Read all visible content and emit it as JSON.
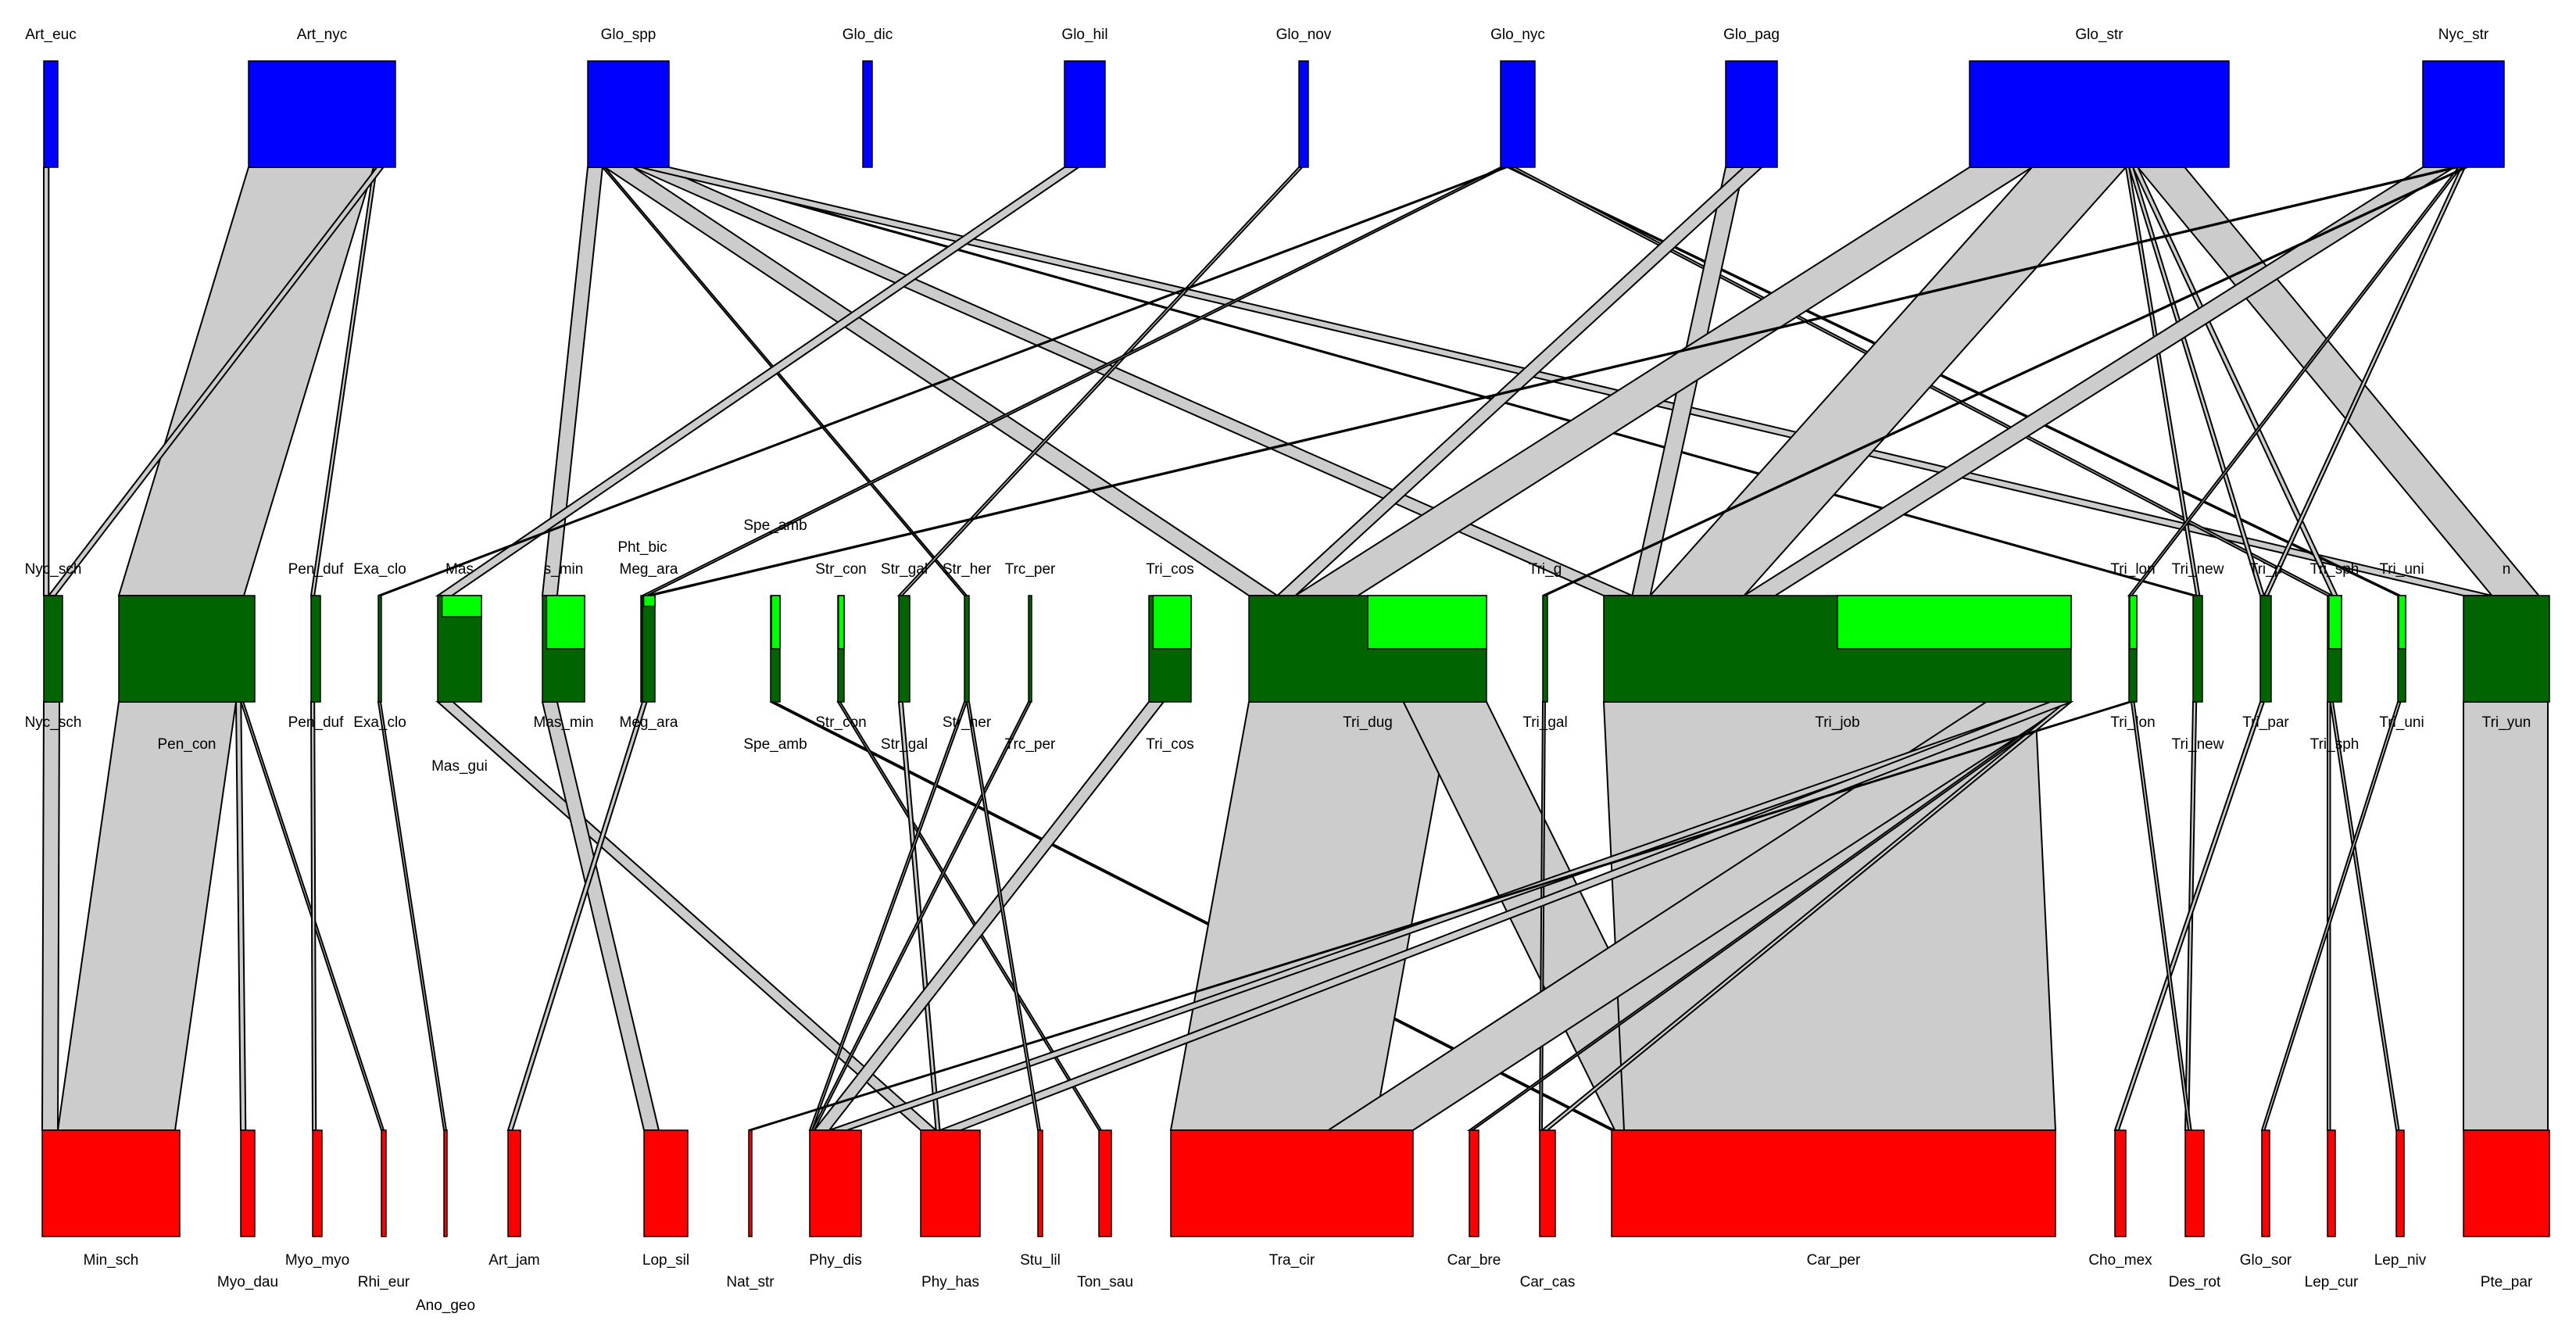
{
  "colors": {
    "top": "#0000ff",
    "middle": "#006400",
    "middle_highlight": "#00ff00",
    "bottom": "#ff0000",
    "link": "#cccccc"
  },
  "top_level": [
    {
      "id": "Art_euc",
      "label": "Art_euc"
    },
    {
      "id": "Art_nyc",
      "label": "Art_nyc"
    },
    {
      "id": "Glo_spp",
      "label": "Glo_spp"
    },
    {
      "id": "Glo_dic",
      "label": "Glo_dic"
    },
    {
      "id": "Glo_hil",
      "label": "Glo_hil"
    },
    {
      "id": "Glo_nov",
      "label": "Glo_nov"
    },
    {
      "id": "Glo_nyc",
      "label": "Glo_nyc"
    },
    {
      "id": "Glo_pag",
      "label": "Glo_pag"
    },
    {
      "id": "Glo_str",
      "label": "Glo_str"
    },
    {
      "id": "Nyc_str",
      "label": "Nyc_str"
    }
  ],
  "middle_level": [
    {
      "id": "Nyc_sch",
      "label": "Nyc_sch",
      "up": "Nyc_sch",
      "highlight": 0
    },
    {
      "id": "Pen_con",
      "label": "Pen_con",
      "up": "",
      "highlight": 0
    },
    {
      "id": "Pen_duf",
      "label": "Pen_duf",
      "up": "Pen_duf",
      "highlight": 0
    },
    {
      "id": "Exa_clo",
      "label": "Exa_clo",
      "up": "Exa_clo",
      "highlight": 0
    },
    {
      "id": "Mas_gui",
      "label": "Mas_gui",
      "up": "Mas",
      "highlight": 0.2
    },
    {
      "id": "Mas_min",
      "label": "Mas_min",
      "up": "s_min",
      "highlight": 0.5
    },
    {
      "id": "Pht_bic",
      "label": "",
      "up": "Pht_bic",
      "highlight": 0
    },
    {
      "id": "Meg_ara",
      "label": "Meg_ara",
      "up": "Meg_ara",
      "highlight": 0.1
    },
    {
      "id": "Spe_amb",
      "label": "Spe_amb",
      "up": "Spe_amb",
      "highlight": 0.5
    },
    {
      "id": "Str_con",
      "label": "Str_con",
      "up": "Str_con",
      "highlight": 0.5
    },
    {
      "id": "Str_gal",
      "label": "Str_gal",
      "up": "Str_gal",
      "highlight": 0
    },
    {
      "id": "Str_her",
      "label": "Str_her",
      "up": "Str_her",
      "highlight": 0
    },
    {
      "id": "Trc_per",
      "label": "Trc_per",
      "up": "Trc_per",
      "highlight": 0
    },
    {
      "id": "Tri_cos",
      "label": "Tri_cos",
      "up": "Tri_cos",
      "highlight": 0.5
    },
    {
      "id": "Tri_dug",
      "label": "Tri_dug",
      "up": "",
      "highlight": 0.5
    },
    {
      "id": "Tri_gal",
      "label": "Tri_gal",
      "up": "Tri_g",
      "highlight": 0
    },
    {
      "id": "Tri_job",
      "label": "Tri_job",
      "up": "",
      "highlight": 0.5
    },
    {
      "id": "Tri_lon",
      "label": "Tri_lon",
      "up": "Tri_lon",
      "highlight": 0.5
    },
    {
      "id": "Tri_new",
      "label": "Tri_new",
      "up": "Tri_new",
      "highlight": 0
    },
    {
      "id": "Tri_par",
      "label": "Tri_par",
      "up": "Tri_p",
      "highlight": 0
    },
    {
      "id": "Tri_sph",
      "label": "Tri_sph",
      "up": "Tri_sph",
      "highlight": 0.5
    },
    {
      "id": "Tri_uni",
      "label": "Tri_uni",
      "up": "Tri_uni",
      "highlight": 0.5
    },
    {
      "id": "Tri_yun",
      "label": "Tri_yun",
      "up": "n",
      "highlight": 0
    }
  ],
  "bottom_level": [
    {
      "id": "Min_sch",
      "label": "Min_sch"
    },
    {
      "id": "Myo_dau",
      "label": "Myo_dau"
    },
    {
      "id": "Myo_myo",
      "label": "Myo_myo"
    },
    {
      "id": "Rhi_eur",
      "label": "Rhi_eur"
    },
    {
      "id": "Ano_geo",
      "label": "Ano_geo"
    },
    {
      "id": "Art_jam",
      "label": "Art_jam"
    },
    {
      "id": "Lop_sil",
      "label": "Lop_sil"
    },
    {
      "id": "Nat_str",
      "label": "Nat_str"
    },
    {
      "id": "Phy_dis",
      "label": "Phy_dis"
    },
    {
      "id": "Phy_has",
      "label": "Phy_has"
    },
    {
      "id": "Stu_lil",
      "label": "Stu_lil"
    },
    {
      "id": "Ton_sau",
      "label": "Ton_sau"
    },
    {
      "id": "Tra_cir",
      "label": "Tra_cir"
    },
    {
      "id": "Car_bre",
      "label": "Car_bre"
    },
    {
      "id": "Car_cas",
      "label": "Car_cas"
    },
    {
      "id": "Car_per",
      "label": "Car_per"
    },
    {
      "id": "Cho_mex",
      "label": "Cho_mex"
    },
    {
      "id": "Des_rot",
      "label": "Des_rot"
    },
    {
      "id": "Glo_sor",
      "label": "Glo_sor"
    },
    {
      "id": "Lep_cur",
      "label": "Lep_cur"
    },
    {
      "id": "Lep_niv",
      "label": "Lep_niv"
    },
    {
      "id": "Pte_par",
      "label": "Pte_par"
    }
  ],
  "upper_links": [
    {
      "from": "Art_euc",
      "to": "Nyc_sch"
    },
    {
      "from": "Art_nyc",
      "to": "Pen_con"
    },
    {
      "from": "Art_nyc",
      "to": "Pen_duf"
    },
    {
      "from": "Art_nyc",
      "to": "Nyc_sch"
    },
    {
      "from": "Glo_spp",
      "to": "Mas_min"
    },
    {
      "from": "Glo_spp",
      "to": "Str_her"
    },
    {
      "from": "Glo_spp",
      "to": "Tri_dug"
    },
    {
      "from": "Glo_spp",
      "to": "Tri_job"
    },
    {
      "from": "Glo_spp",
      "to": "Tri_new"
    },
    {
      "from": "Glo_spp",
      "to": "Tri_yun"
    },
    {
      "from": "Glo_hil",
      "to": "Mas_gui"
    },
    {
      "from": "Glo_nov",
      "to": "Str_gal"
    },
    {
      "from": "Glo_nyc",
      "to": "Meg_ara"
    },
    {
      "from": "Glo_nyc",
      "to": "Exa_clo"
    },
    {
      "from": "Glo_nyc",
      "to": "Tri_uni"
    },
    {
      "from": "Glo_nyc",
      "to": "Tri_sph"
    },
    {
      "from": "Glo_pag",
      "to": "Tri_job"
    },
    {
      "from": "Glo_pag",
      "to": "Tri_dug"
    },
    {
      "from": "Glo_str",
      "to": "Tri_dug"
    },
    {
      "from": "Glo_str",
      "to": "Tri_job"
    },
    {
      "from": "Glo_str",
      "to": "Tri_new"
    },
    {
      "from": "Glo_str",
      "to": "Tri_par"
    },
    {
      "from": "Glo_str",
      "to": "Tri_sph"
    },
    {
      "from": "Glo_str",
      "to": "Tri_yun"
    },
    {
      "from": "Nyc_str",
      "to": "Tri_job"
    },
    {
      "from": "Nyc_str",
      "to": "Meg_ara"
    },
    {
      "from": "Nyc_str",
      "to": "Tri_lon"
    },
    {
      "from": "Nyc_str",
      "to": "Tri_par"
    },
    {
      "from": "Nyc_str",
      "to": "Tri_gal"
    }
  ],
  "lower_links": [
    {
      "from": "Nyc_sch",
      "to": "Min_sch"
    },
    {
      "from": "Pen_con",
      "to": "Min_sch"
    },
    {
      "from": "Pen_con",
      "to": "Myo_dau"
    },
    {
      "from": "Pen_con",
      "to": "Rhi_eur"
    },
    {
      "from": "Pen_duf",
      "to": "Myo_myo"
    },
    {
      "from": "Exa_clo",
      "to": "Ano_geo"
    },
    {
      "from": "Mas_gui",
      "to": "Phy_has"
    },
    {
      "from": "Mas_min",
      "to": "Lop_sil"
    },
    {
      "from": "Meg_ara",
      "to": "Art_jam"
    },
    {
      "from": "Spe_amb",
      "to": "Car_per"
    },
    {
      "from": "Str_con",
      "to": "Ton_sau"
    },
    {
      "from": "Str_gal",
      "to": "Phy_has"
    },
    {
      "from": "Str_her",
      "to": "Phy_dis"
    },
    {
      "from": "Trc_per",
      "to": "Phy_dis"
    },
    {
      "from": "Tri_cos",
      "to": "Phy_dis"
    },
    {
      "from": "Tri_dug",
      "to": "Tra_cir"
    },
    {
      "from": "Tri_dug",
      "to": "Car_per"
    },
    {
      "from": "Tri_gal",
      "to": "Car_cas"
    },
    {
      "from": "Tri_job",
      "to": "Car_per"
    },
    {
      "from": "Tri_job",
      "to": "Tra_cir"
    },
    {
      "from": "Tri_job",
      "to": "Car_bre"
    },
    {
      "from": "Tri_job",
      "to": "Car_cas"
    },
    {
      "from": "Tri_job",
      "to": "Phy_dis"
    },
    {
      "from": "Tri_job",
      "to": "Phy_has"
    },
    {
      "from": "Tri_lon",
      "to": "Nat_str"
    },
    {
      "from": "Tri_new",
      "to": "Des_rot"
    },
    {
      "from": "Tri_par",
      "to": "Cho_mex"
    },
    {
      "from": "Tri_sph",
      "to": "Lep_cur"
    },
    {
      "from": "Tri_sph",
      "to": "Lep_niv"
    },
    {
      "from": "Tri_uni",
      "to": "Glo_sor"
    },
    {
      "from": "Tri_yun",
      "to": "Pte_par"
    },
    {
      "from": "Tri_lon",
      "to": "Des_rot"
    },
    {
      "from": "Str_her",
      "to": "Stu_lil"
    }
  ]
}
